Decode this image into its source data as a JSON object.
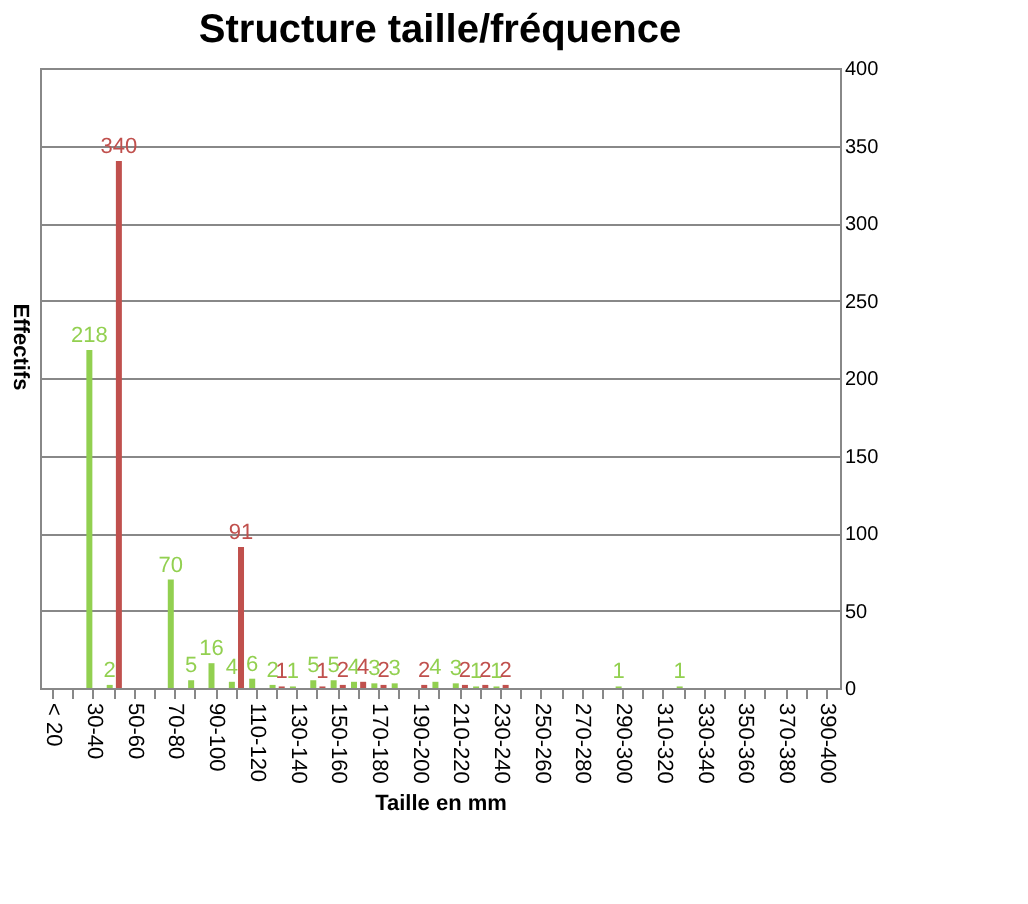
{
  "chart_data": {
    "type": "bar",
    "title": "Structure taille/fréquence",
    "xlabel": "Taille en mm",
    "ylabel": "Effectifs",
    "categories": [
      "< 20",
      null,
      "30-40",
      null,
      "50-60",
      null,
      "70-80",
      null,
      "90-100",
      null,
      "110-120",
      null,
      "130-140",
      null,
      "150-160",
      null,
      "170-180",
      null,
      "190-200",
      null,
      "210-220",
      null,
      "230-240",
      null,
      "250-260",
      null,
      "270-280",
      null,
      "290-300",
      null,
      "310-320",
      null,
      "330-340",
      null,
      "350-360",
      null,
      "370-380",
      null,
      "390-400"
    ],
    "series": [
      {
        "color": "#92d050",
        "values": [
          null,
          null,
          218,
          2,
          null,
          null,
          70,
          5,
          16,
          4,
          6,
          2,
          1,
          5,
          5,
          4,
          3,
          3,
          null,
          4,
          3,
          1,
          1,
          null,
          null,
          null,
          null,
          null,
          1,
          null,
          null,
          1,
          null,
          null,
          null,
          null,
          null,
          null,
          null
        ]
      },
      {
        "color": "#c0504d",
        "values": [
          null,
          null,
          null,
          340,
          null,
          null,
          null,
          null,
          null,
          91,
          null,
          1,
          null,
          1,
          2,
          4,
          2,
          null,
          2,
          null,
          2,
          2,
          2,
          null,
          null,
          null,
          null,
          null,
          null,
          null,
          null,
          null,
          null,
          null,
          null,
          null,
          null,
          null,
          null
        ]
      }
    ],
    "ylim": [
      0,
      400
    ],
    "yticks": [
      0,
      50,
      100,
      150,
      200,
      250,
      300,
      350,
      400
    ],
    "grid": "y",
    "data_labels": true
  }
}
